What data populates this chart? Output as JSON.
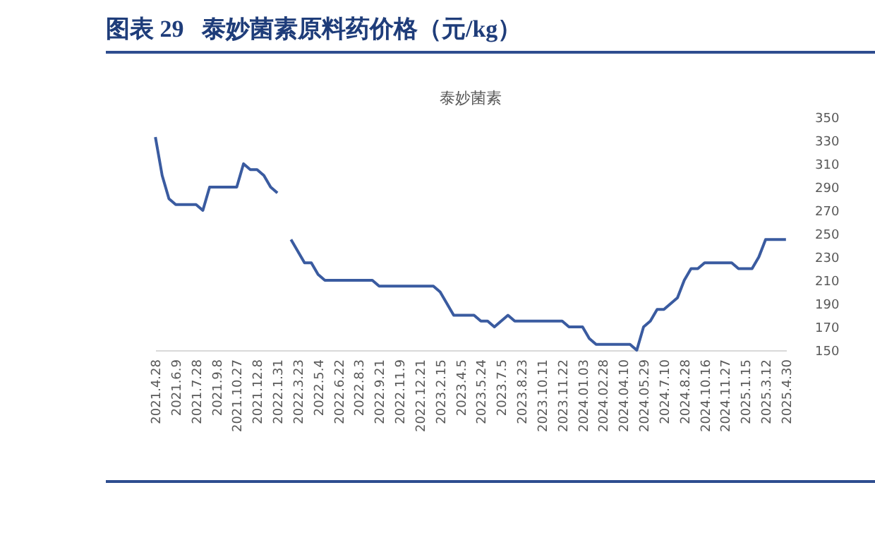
{
  "chart_data": {
    "type": "line",
    "title": "图表 29   泰妙菌素原料药价格（元/kg）",
    "subtitle": "泰妙菌素",
    "categories": [
      "2021.4.28",
      null,
      null,
      "2021.6.9",
      null,
      null,
      "2021.7.28",
      null,
      null,
      "2021.9.8",
      null,
      null,
      "2021.10.27",
      null,
      null,
      "2021.12.8",
      null,
      null,
      "2022.1.31",
      null,
      null,
      "2022.3.23",
      null,
      null,
      "2022.5.4",
      null,
      null,
      "2022.6.22",
      null,
      null,
      "2022.8.3",
      null,
      null,
      "2022.9.21",
      null,
      null,
      "2022.11.9",
      null,
      null,
      "2022.12.21",
      null,
      null,
      "2023.2.15",
      null,
      null,
      "2023.4.5",
      null,
      null,
      "2023.5.24",
      null,
      null,
      "2023.7.5",
      null,
      null,
      "2023.8.23",
      null,
      null,
      "2023.10.11",
      null,
      null,
      "2023.11.22",
      null,
      null,
      "2024.01.03",
      null,
      null,
      "2024.02.28",
      null,
      null,
      "2024.04.10",
      null,
      null,
      "2024.05.29",
      null,
      null,
      "2024.7.10",
      null,
      null,
      "2024.8.28",
      null,
      null,
      "2024.10.16",
      null,
      null,
      "2024.11.27",
      null,
      null,
      "2025.1.15",
      null,
      null,
      "2025.3.12",
      null,
      null,
      "2025.4.30"
    ],
    "values": [
      333,
      300,
      280,
      275,
      275,
      275,
      275,
      270,
      290,
      290,
      290,
      290,
      290,
      310,
      305,
      305,
      300,
      290,
      285,
      null,
      245,
      235,
      225,
      225,
      215,
      210,
      210,
      210,
      210,
      210,
      210,
      210,
      210,
      205,
      205,
      205,
      205,
      205,
      205,
      205,
      205,
      205,
      200,
      190,
      180,
      180,
      180,
      180,
      175,
      175,
      170,
      175,
      180,
      175,
      175,
      175,
      175,
      175,
      175,
      175,
      175,
      170,
      170,
      170,
      160,
      155,
      155,
      155,
      155,
      155,
      155,
      150,
      170,
      175,
      185,
      185,
      190,
      195,
      210,
      220,
      220,
      225,
      225,
      225,
      225,
      225,
      220,
      220,
      220,
      230,
      245,
      245,
      245,
      245
    ],
    "color": "#3a5ba0",
    "ylim": [
      150,
      350
    ],
    "yticks": [
      150,
      170,
      190,
      210,
      230,
      250,
      270,
      290,
      310,
      330,
      350
    ]
  }
}
